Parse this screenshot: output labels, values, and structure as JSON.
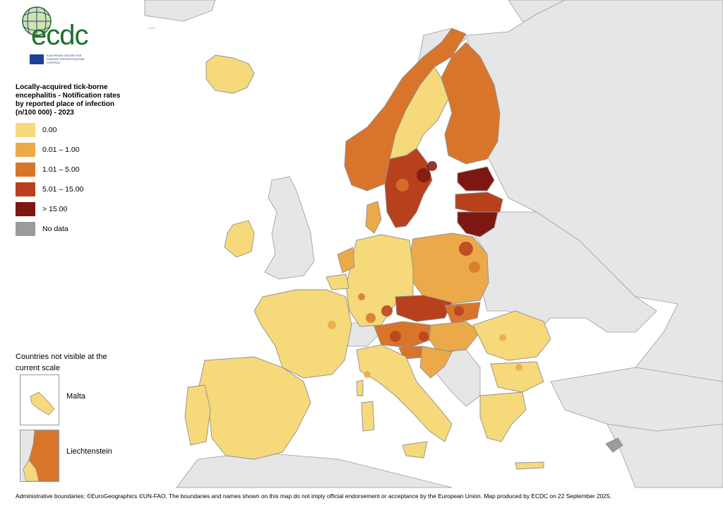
{
  "map": {
    "logo": {
      "wordmark": "ecdc",
      "subtitle": "EUROPEAN CENTRE FOR DISEASE PREVENTION AND CONTROL"
    },
    "legend": {
      "title": "Locally-acquired tick-borne encephalitis - Notification rates by reported place of infection (n/100 000) - 2023",
      "classes": [
        {
          "label": "0.00",
          "color": "#f6d97a"
        },
        {
          "label": "0.01 – 1.00",
          "color": "#eba94a"
        },
        {
          "label": "1.01 – 5.00",
          "color": "#d9752b"
        },
        {
          "label": "5.01 – 15.00",
          "color": "#b9401d"
        },
        {
          "label": "> 15.00",
          "color": "#7e1712"
        },
        {
          "label": "No data",
          "color": "#9b9b9b"
        }
      ]
    },
    "not_visible": {
      "heading": "Countries not visible at the current scale",
      "insets": [
        {
          "label": "Malta",
          "color": "#f6d97a"
        },
        {
          "label": "Liechtenstein",
          "color": "#d9752b"
        }
      ]
    },
    "background_color": "#e6e6e6",
    "footer": "Administrative boundaries: ©EuroGeographics ©UN-FAO. The boundaries and names shown on this map do not imply official endorsement or acceptance by the European Union. Map produced by ECDC on 22 September 2025."
  }
}
